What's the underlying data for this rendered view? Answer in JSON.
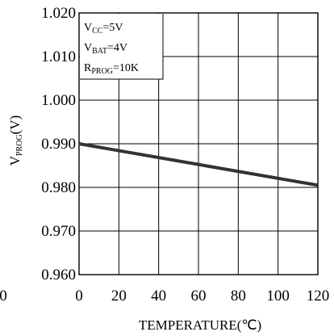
{
  "chart_data": {
    "type": "line",
    "xlabel": "TEMPERATURE(℃)",
    "ylabel_main": "V",
    "ylabel_sub": "PROG",
    "ylabel_unit": "(V)",
    "xlim": [
      0,
      120
    ],
    "ylim": [
      0.96,
      1.02
    ],
    "x_ticks": [
      0,
      20,
      40,
      60,
      80,
      100,
      120
    ],
    "x_tick_labels": [
      "0",
      "20",
      "40",
      "60",
      "80",
      "100",
      "120"
    ],
    "y_ticks": [
      0.96,
      0.97,
      0.98,
      0.99,
      1.0,
      1.01,
      1.02
    ],
    "y_tick_labels": [
      "0.960",
      "0.970",
      "0.980",
      "0.990",
      "1.000",
      "1.010",
      "1.020"
    ],
    "left_edge_label": "0",
    "grid": true,
    "annotations": [
      {
        "main": "V",
        "sub": "CC",
        "rest": "=5V"
      },
      {
        "main": "V",
        "sub": "BAT",
        "rest": "=4V"
      },
      {
        "main": "R",
        "sub": "PROG",
        "rest": "=10K"
      }
    ],
    "series": [
      {
        "x": [
          0,
          120
        ],
        "y": [
          0.99,
          0.9805
        ],
        "color": "#333333"
      }
    ]
  }
}
